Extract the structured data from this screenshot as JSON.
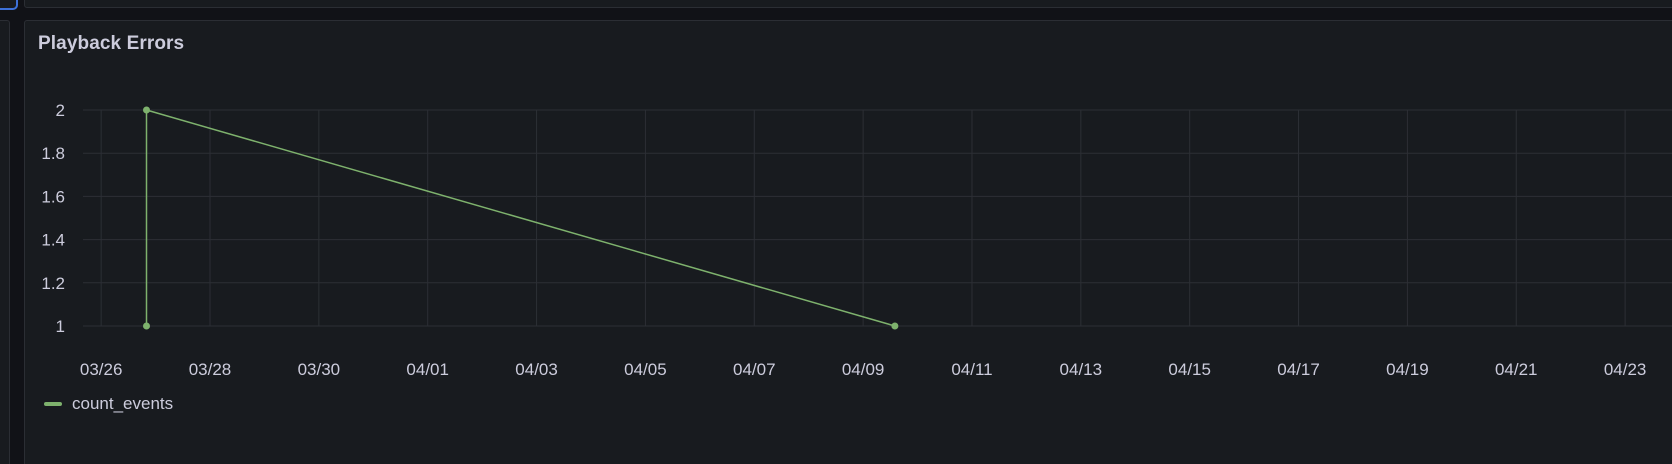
{
  "panel": {
    "title": "Playback Errors"
  },
  "colors": {
    "series": "#7eb26d",
    "grid": "#2c2f35",
    "text": "#ccccdc",
    "panel_bg": "#181b1f"
  },
  "chart_data": {
    "type": "line",
    "title": "Playback Errors",
    "xlabel": "",
    "ylabel": "",
    "x_ticks": [
      "03/26",
      "03/28",
      "03/30",
      "04/01",
      "04/03",
      "04/05",
      "04/07",
      "04/09",
      "04/11",
      "04/13",
      "04/15",
      "04/17",
      "04/19",
      "04/21",
      "04/23"
    ],
    "x_range": [
      "2025-03-25T16:00",
      "2025-04-23T22:00"
    ],
    "y_ticks": [
      "1",
      "1.2",
      "1.4",
      "1.6",
      "1.8",
      "2"
    ],
    "ylim": [
      1,
      2
    ],
    "grid": true,
    "legend_placement": "bottom-left",
    "series": [
      {
        "name": "count_events",
        "points": [
          {
            "x": "2025-03-26T20:00",
            "y": 1
          },
          {
            "x": "2025-03-26T20:00",
            "y": 2
          },
          {
            "x": "2025-04-09T14:00",
            "y": 1
          }
        ]
      }
    ]
  }
}
